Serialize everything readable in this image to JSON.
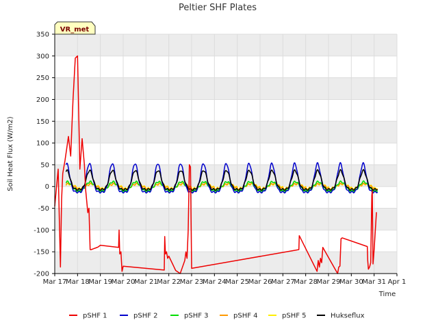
{
  "chart_data": {
    "type": "line",
    "title": "Peltier SHF Plates",
    "xlabel": "Time",
    "ylabel": "Soil Heat Flux (W/m2)",
    "badge": "VR_met",
    "xlim": [
      17,
      32
    ],
    "ylim": [
      -200,
      350
    ],
    "y_ticks": [
      -200,
      -150,
      -100,
      -50,
      0,
      50,
      100,
      150,
      200,
      250,
      300,
      350
    ],
    "x_ticks": [
      {
        "value": 17,
        "label": "Mar 17"
      },
      {
        "value": 18,
        "label": "Mar 18"
      },
      {
        "value": 19,
        "label": "Mar 19"
      },
      {
        "value": 20,
        "label": "Mar 20"
      },
      {
        "value": 21,
        "label": "Mar 21"
      },
      {
        "value": 22,
        "label": "Mar 22"
      },
      {
        "value": 23,
        "label": "Mar 23"
      },
      {
        "value": 24,
        "label": "Mar 24"
      },
      {
        "value": 25,
        "label": "Mar 25"
      },
      {
        "value": 26,
        "label": "Mar 26"
      },
      {
        "value": 27,
        "label": "Mar 27"
      },
      {
        "value": 28,
        "label": "Mar 28"
      },
      {
        "value": 29,
        "label": "Mar 29"
      },
      {
        "value": 30,
        "label": "Mar 30"
      },
      {
        "value": 31,
        "label": "Mar 31"
      },
      {
        "value": 32,
        "label": "Apr 1"
      }
    ],
    "series": [
      {
        "name": "pSHF 1",
        "color": "#ee0000",
        "x": [
          17.0,
          17.15,
          17.25,
          17.3,
          17.35,
          17.45,
          17.6,
          17.7,
          17.8,
          17.9,
          18.0,
          18.1,
          18.2,
          18.3,
          18.35,
          18.45,
          18.5,
          18.55,
          18.6,
          18.7,
          18.8,
          18.9,
          18.95,
          19.0,
          19.8,
          19.82,
          19.85,
          19.9,
          19.95,
          20.0,
          21.8,
          21.82,
          21.85,
          21.9,
          21.95,
          22.0,
          22.3,
          22.5,
          22.7,
          22.75,
          22.8,
          22.85,
          22.9,
          22.95,
          23.0,
          27.7,
          27.72,
          28.5,
          28.55,
          28.6,
          28.65,
          28.7,
          28.75,
          29.4,
          29.45,
          29.5,
          29.55,
          29.6,
          30.7,
          30.72,
          30.75,
          30.8,
          30.85,
          30.9,
          30.92,
          30.95,
          31.0,
          31.1
        ],
        "values": [
          -45,
          40,
          -185,
          -30,
          30,
          60,
          115,
          70,
          200,
          295,
          300,
          40,
          110,
          50,
          -5,
          -60,
          -50,
          -145,
          -145,
          -143,
          -141,
          -139,
          -137,
          -135,
          -140,
          -100,
          -155,
          -150,
          -195,
          -183,
          -192,
          -115,
          -155,
          -150,
          -165,
          -160,
          -193,
          -200,
          -170,
          -150,
          -165,
          -100,
          50,
          45,
          -188,
          -145,
          -113,
          -195,
          -170,
          -185,
          -165,
          -175,
          -140,
          -200,
          -185,
          -183,
          -120,
          -118,
          -138,
          -170,
          -190,
          -185,
          -175,
          -20,
          -10,
          -178,
          -145,
          -60
        ]
      },
      {
        "name": "pSHF 2",
        "color": "#0000cc",
        "center": 20,
        "amplitude": 60,
        "phase": 0.52,
        "width": 0.13
      },
      {
        "name": "pSHF 3",
        "color": "#00dd00",
        "center": 0,
        "amplitude": 20,
        "phase": 0.55,
        "width": 0.18
      },
      {
        "name": "pSHF 4",
        "color": "#ff9900",
        "center": 0,
        "amplitude": 12,
        "phase": 0.6,
        "width": 0.22
      },
      {
        "name": "pSHF 5",
        "color": "#ffee00",
        "center": 0,
        "amplitude": 10,
        "phase": 0.62,
        "width": 0.25
      },
      {
        "name": "Hukseflux",
        "color": "#000000",
        "center": 15,
        "amplitude": 40,
        "phase": 0.53,
        "width": 0.14
      }
    ]
  }
}
